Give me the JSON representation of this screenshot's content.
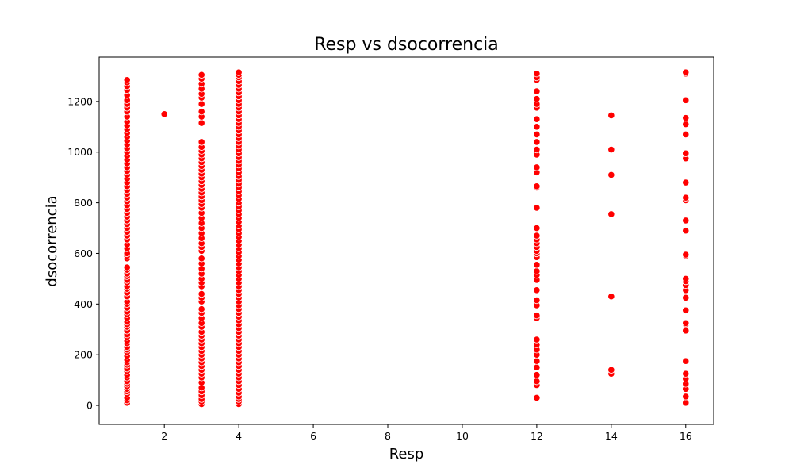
{
  "chart_data": {
    "type": "scatter",
    "title": "Resp vs dsocorrencia",
    "xlabel": "Resp",
    "ylabel": "dsocorrencia",
    "xlim": [
      0.25,
      16.75
    ],
    "ylim": [
      -75,
      1375
    ],
    "xticks": [
      2,
      4,
      6,
      8,
      10,
      12,
      14,
      16
    ],
    "yticks": [
      0,
      200,
      400,
      600,
      800,
      1000,
      1200
    ],
    "grid": false,
    "legend": "none",
    "marker_color": "#ff0000",
    "marker_edge": "#ffffff",
    "series": [
      {
        "points": [
          {
            "x": 1,
            "y": [
              10,
              20,
              30,
              45,
              55,
              65,
              75,
              85,
              95,
              110,
              120,
              135,
              145,
              160,
              170,
              180,
              195,
              210,
              220,
              230,
              245,
              255,
              270,
              280,
              295,
              310,
              320,
              330,
              345,
              360,
              370,
              385,
              400,
              410,
              430,
              445,
              460,
              470,
              485,
              495,
              510,
              520,
              535,
              545,
              580,
              590,
              600,
              620,
              635,
              655,
              670,
              685,
              700,
              715,
              730,
              745,
              760,
              775,
              790,
              805,
              820,
              835,
              850,
              865,
              880,
              895,
              910,
              925,
              940,
              955,
              970,
              985,
              1000,
              1015,
              1030,
              1045,
              1060,
              1075,
              1090,
              1105,
              1120,
              1140,
              1160,
              1175,
              1190,
              1205,
              1225,
              1245,
              1260,
              1275,
              1285
            ]
          },
          {
            "x": 2,
            "y": [
              1150
            ]
          },
          {
            "x": 3,
            "y": [
              5,
              15,
              25,
              40,
              55,
              70,
              90,
              110,
              125,
              140,
              155,
              170,
              185,
              200,
              215,
              230,
              245,
              260,
              275,
              290,
              310,
              325,
              345,
              365,
              380,
              410,
              425,
              440,
              470,
              485,
              500,
              520,
              540,
              560,
              580,
              610,
              625,
              640,
              660,
              680,
              700,
              720,
              740,
              760,
              780,
              795,
              810,
              825,
              840,
              855,
              870,
              885,
              900,
              915,
              930,
              945,
              960,
              975,
              990,
              1005,
              1020,
              1040,
              1115,
              1140,
              1160,
              1190,
              1215,
              1230,
              1250,
              1270,
              1290,
              1305
            ]
          },
          {
            "x": 4,
            "y": [
              5,
              15,
              25,
              35,
              50,
              65,
              80,
              95,
              110,
              125,
              140,
              155,
              170,
              185,
              200,
              215,
              230,
              245,
              260,
              275,
              290,
              305,
              320,
              335,
              350,
              365,
              380,
              395,
              410,
              425,
              440,
              455,
              470,
              485,
              500,
              515,
              530,
              545,
              560,
              575,
              590,
              605,
              620,
              635,
              650,
              665,
              680,
              695,
              710,
              725,
              740,
              755,
              770,
              785,
              800,
              815,
              830,
              845,
              860,
              875,
              890,
              905,
              920,
              935,
              950,
              965,
              980,
              995,
              1010,
              1025,
              1040,
              1055,
              1070,
              1085,
              1100,
              1115,
              1130,
              1145,
              1160,
              1175,
              1190,
              1205,
              1220,
              1235,
              1250,
              1265,
              1280,
              1295,
              1305,
              1315
            ]
          },
          {
            "x": 12,
            "y": [
              30,
              80,
              95,
              120,
              150,
              175,
              200,
              220,
              240,
              260,
              345,
              355,
              395,
              415,
              455,
              495,
              515,
              530,
              555,
              585,
              600,
              610,
              625,
              640,
              655,
              670,
              700,
              780,
              860,
              865,
              920,
              940,
              990,
              1010,
              1040,
              1070,
              1100,
              1130,
              1175,
              1190,
              1210,
              1240,
              1285,
              1295,
              1310
            ]
          },
          {
            "x": 14,
            "y": [
              125,
              140,
              430,
              755,
              910,
              1010,
              1145
            ]
          },
          {
            "x": 16,
            "y": [
              10,
              35,
              65,
              85,
              105,
              125,
              175,
              295,
              320,
              325,
              375,
              425,
              455,
              475,
              490,
              500,
              590,
              595,
              690,
              730,
              810,
              820,
              880,
              975,
              995,
              1070,
              1110,
              1135,
              1205,
              1310,
              1315
            ]
          }
        ]
      }
    ]
  }
}
